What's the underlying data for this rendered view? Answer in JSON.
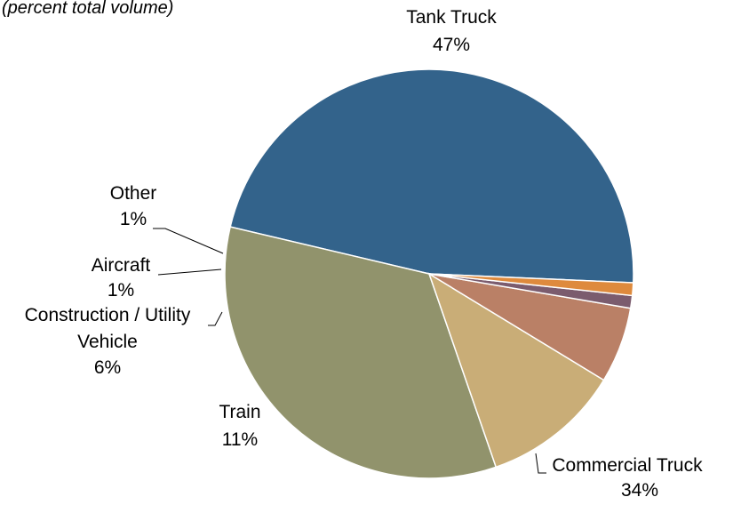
{
  "chart_data": {
    "type": "pie",
    "subtitle": "(percent total volume)",
    "slices": [
      {
        "label": "Tank Truck",
        "value": 47,
        "value_label": "47%",
        "color": "#33638b"
      },
      {
        "label": "Commercial Truck",
        "value": 34,
        "value_label": "34%",
        "color": "#91936c"
      },
      {
        "label": "Train",
        "value": 11,
        "value_label": "11%",
        "color": "#c9ad77"
      },
      {
        "label": "Construction / Utility Vehicle",
        "value": 6,
        "value_label": "6%",
        "color": "#ba8066"
      },
      {
        "label": "Aircraft",
        "value": 1,
        "value_label": "1%",
        "color": "#7b5c6e"
      },
      {
        "label": "Other",
        "value": 1,
        "value_label": "1%",
        "color": "#de8a3d"
      }
    ]
  }
}
